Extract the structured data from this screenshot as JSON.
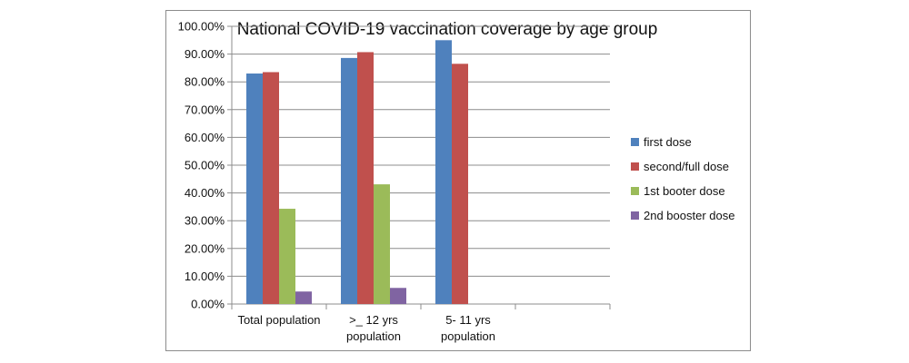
{
  "chart_data": {
    "type": "bar",
    "title": "National COVID-19 vaccination coverage by age group",
    "xlabel": "",
    "ylabel": "",
    "ylim": [
      0,
      100
    ],
    "y_ticks": [
      0,
      10,
      20,
      30,
      40,
      50,
      60,
      70,
      80,
      90,
      100
    ],
    "y_tick_labels": [
      "0.00%",
      "10.00%",
      "20.00%",
      "30.00%",
      "40.00%",
      "50.00%",
      "60.00%",
      "70.00%",
      "80.00%",
      "90.00%",
      "100.00%"
    ],
    "grid": true,
    "legend_position": "right",
    "categories": [
      [
        "Total population"
      ],
      [
        ">_ 12 yrs",
        "population"
      ],
      [
        "5- 11 yrs",
        "population"
      ],
      [
        ""
      ]
    ],
    "series": [
      {
        "name": "first dose",
        "color": "#4F81BD",
        "values": [
          83.0,
          88.6,
          95.0,
          null
        ]
      },
      {
        "name": "second/full dose",
        "color": "#C0504D",
        "values": [
          83.5,
          90.7,
          86.5,
          null
        ]
      },
      {
        "name": "1st booter dose",
        "color": "#9BBB59",
        "values": [
          34.3,
          43.1,
          null,
          null
        ]
      },
      {
        "name": "2nd booster dose",
        "color": "#8064A2",
        "values": [
          4.5,
          5.8,
          null,
          null
        ]
      }
    ]
  }
}
